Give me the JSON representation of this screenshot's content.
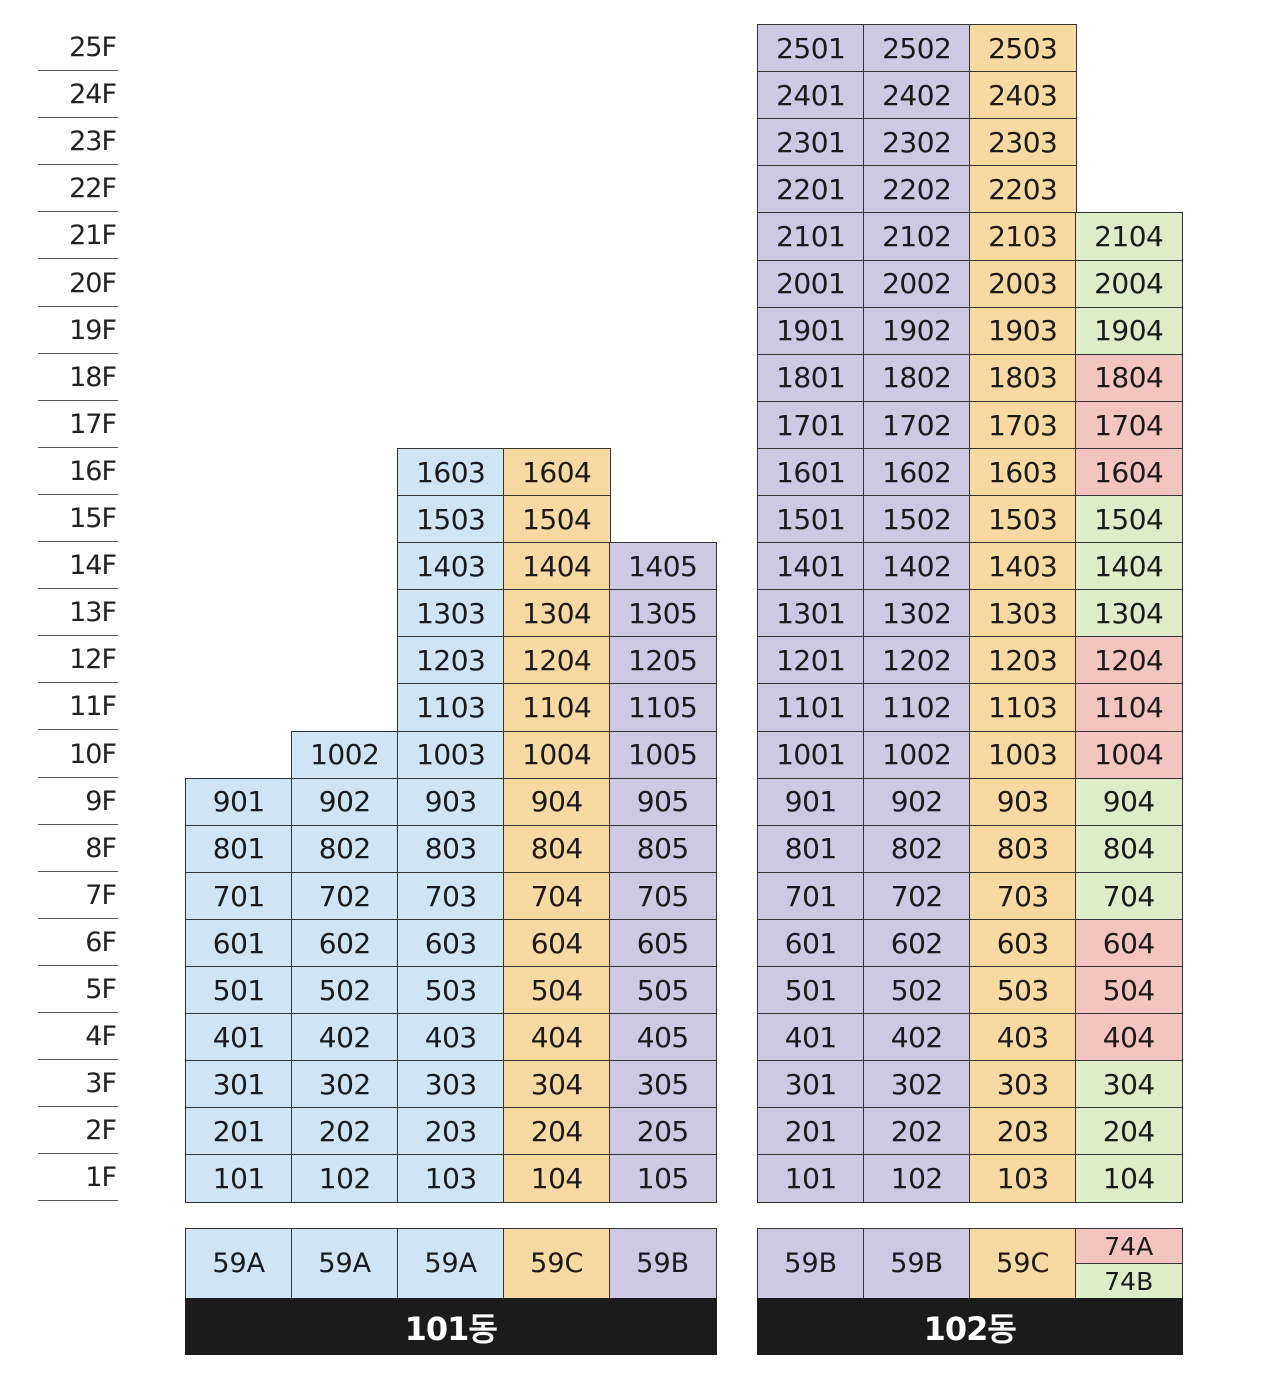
{
  "colors": {
    "59A": "#cfe4f5",
    "59B": "#cdc8e3",
    "59C": "#f8d9a1",
    "74A": "#f4c4c1",
    "74B": "#dcedc8"
  },
  "floors": [
    "25F",
    "24F",
    "23F",
    "22F",
    "21F",
    "20F",
    "19F",
    "18F",
    "17F",
    "16F",
    "15F",
    "14F",
    "13F",
    "12F",
    "11F",
    "10F",
    "9F",
    "8F",
    "7F",
    "6F",
    "5F",
    "4F",
    "3F",
    "2F",
    "1F"
  ],
  "buildings": [
    {
      "name": "101동",
      "columns": [
        {
          "line": "01",
          "top_floor": 9,
          "types": [
            {
              "label": "59A",
              "color_key": "59A"
            }
          ]
        },
        {
          "line": "02",
          "top_floor": 10,
          "types": [
            {
              "label": "59A",
              "color_key": "59A"
            }
          ]
        },
        {
          "line": "03",
          "top_floor": 16,
          "types": [
            {
              "label": "59A",
              "color_key": "59A"
            }
          ]
        },
        {
          "line": "04",
          "top_floor": 16,
          "types": [
            {
              "label": "59C",
              "color_key": "59C"
            }
          ]
        },
        {
          "line": "05",
          "top_floor": 14,
          "types": [
            {
              "label": "59B",
              "color_key": "59B"
            }
          ]
        }
      ]
    },
    {
      "name": "102동",
      "columns": [
        {
          "line": "01",
          "top_floor": 25,
          "types": [
            {
              "label": "59B",
              "color_key": "59B"
            }
          ]
        },
        {
          "line": "02",
          "top_floor": 25,
          "types": [
            {
              "label": "59B",
              "color_key": "59B"
            }
          ]
        },
        {
          "line": "03",
          "top_floor": 25,
          "types": [
            {
              "label": "59C",
              "color_key": "59C"
            }
          ]
        },
        {
          "line": "04",
          "top_floor": 21,
          "types": [
            {
              "label": "74A",
              "color_key": "74A"
            },
            {
              "label": "74B",
              "color_key": "74B"
            }
          ],
          "unit_types": {
            "21": "74B",
            "20": "74B",
            "19": "74B",
            "18": "74A",
            "17": "74A",
            "16": "74A",
            "15": "74B",
            "14": "74B",
            "13": "74B",
            "12": "74A",
            "11": "74A",
            "10": "74A",
            "9": "74B",
            "8": "74B",
            "7": "74B",
            "6": "74A",
            "5": "74A",
            "4": "74A",
            "3": "74B",
            "2": "74B",
            "1": "74B"
          }
        }
      ]
    }
  ]
}
